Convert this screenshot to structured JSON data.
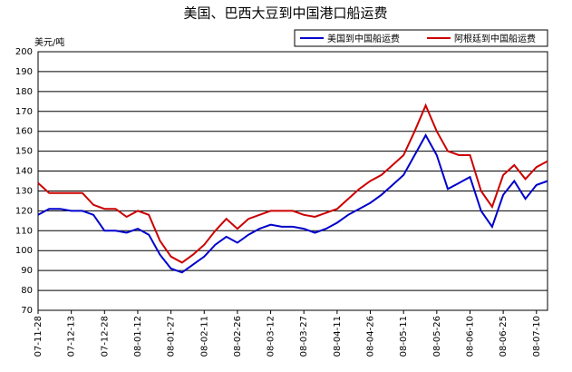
{
  "chart_data": {
    "type": "line",
    "title": "美国、巴西大豆到中国港口船运费",
    "y_label": "美元/吨",
    "categories": [
      "07-11-28",
      null,
      null,
      "07-12-13",
      null,
      null,
      "07-12-28",
      null,
      null,
      "08-01-12",
      null,
      null,
      "08-01-27",
      null,
      null,
      "08-02-11",
      null,
      null,
      "08-02-26",
      null,
      null,
      "08-03-12",
      null,
      null,
      "08-03-27",
      null,
      null,
      "08-04-11",
      null,
      null,
      "08-04-26",
      null,
      null,
      "08-05-11",
      null,
      null,
      "08-05-26",
      null,
      null,
      "08-06-10",
      null,
      null,
      "08-06-25",
      null,
      null,
      "08-07-10",
      null
    ],
    "series": [
      {
        "name": "美国到中国船运费",
        "color": "#0000cc",
        "values": [
          118,
          121,
          121,
          120,
          120,
          118,
          110,
          110,
          109,
          111,
          108,
          98,
          91,
          89,
          93,
          97,
          103,
          107,
          104,
          108,
          111,
          113,
          112,
          112,
          111,
          109,
          111,
          114,
          118,
          121,
          124,
          128,
          133,
          138,
          148,
          158,
          148,
          131,
          134,
          137,
          120,
          112,
          128,
          135,
          126,
          133,
          135
        ]
      },
      {
        "name": "阿根廷到中国船运费",
        "color": "#cc0000",
        "values": [
          134,
          129,
          129,
          129,
          129,
          123,
          121,
          121,
          117,
          120,
          118,
          105,
          97,
          94,
          98,
          103,
          110,
          116,
          111,
          116,
          118,
          120,
          120,
          120,
          118,
          117,
          119,
          121,
          126,
          131,
          135,
          138,
          143,
          148,
          160,
          173,
          160,
          150,
          148,
          148,
          130,
          122,
          138,
          143,
          136,
          142,
          145
        ]
      }
    ],
    "ylim": [
      70,
      200
    ],
    "yticks": [
      70,
      80,
      90,
      100,
      110,
      120,
      130,
      140,
      150,
      160,
      170,
      180,
      190,
      200
    ],
    "grid": true,
    "legend": "top-right"
  }
}
